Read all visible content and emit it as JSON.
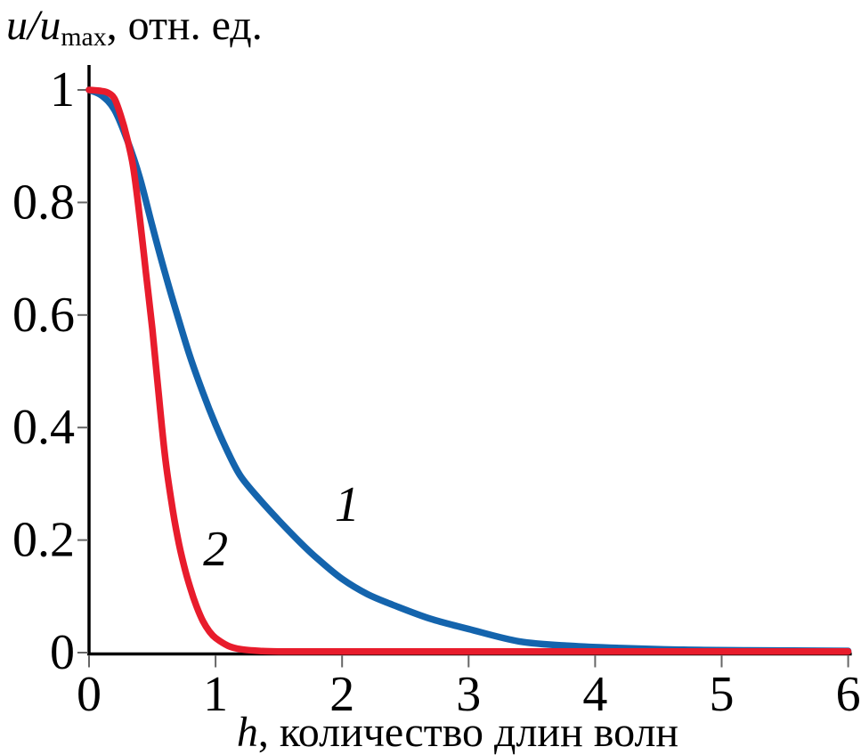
{
  "titles": {
    "y_italic": "u/u",
    "y_sub": "max",
    "y_rest": ", отн. ед.",
    "x_italic": "h",
    "x_rest": ", количество длин волн"
  },
  "chart_data": {
    "type": "line",
    "title": "",
    "ylabel": "u/u_max, отн. ед.",
    "xlabel": "h, количество длин волн",
    "xlim": [
      0,
      6
    ],
    "ylim": [
      0,
      1
    ],
    "x_ticks": [
      0,
      1,
      2,
      3,
      4,
      5,
      6
    ],
    "x_tick_labels": [
      "0",
      "1",
      "2",
      "3",
      "4",
      "5",
      "6"
    ],
    "y_ticks": [
      0,
      0.2,
      0.4,
      0.6,
      0.8,
      1
    ],
    "y_tick_labels": [
      "0",
      "0.2",
      "0.4",
      "0.6",
      "0.8",
      "1"
    ],
    "grid": false,
    "legend_position": "inline-curve-labels",
    "axis_color": "#000000",
    "series": [
      {
        "name": "1",
        "color": "#1464ad",
        "label_position": {
          "x": 2.04,
          "y": 0.263
        },
        "points": [
          [
            0,
            1.0
          ],
          [
            0.1,
            0.99
          ],
          [
            0.2,
            0.965
          ],
          [
            0.3,
            0.912
          ],
          [
            0.4,
            0.845
          ],
          [
            0.5,
            0.758
          ],
          [
            0.6,
            0.675
          ],
          [
            0.7,
            0.598
          ],
          [
            0.8,
            0.525
          ],
          [
            0.9,
            0.462
          ],
          [
            1.0,
            0.405
          ],
          [
            1.1,
            0.355
          ],
          [
            1.2,
            0.313
          ],
          [
            1.35,
            0.272
          ],
          [
            1.5,
            0.235
          ],
          [
            1.65,
            0.2
          ],
          [
            1.8,
            0.168
          ],
          [
            2.0,
            0.131
          ],
          [
            2.2,
            0.104
          ],
          [
            2.4,
            0.085
          ],
          [
            2.7,
            0.06
          ],
          [
            3.0,
            0.042
          ],
          [
            3.4,
            0.02
          ],
          [
            3.8,
            0.012
          ],
          [
            4.2,
            0.008
          ],
          [
            4.7,
            0.005
          ],
          [
            5.2,
            0.004
          ],
          [
            6.0,
            0.003
          ]
        ]
      },
      {
        "name": "2",
        "color": "#e81c2c",
        "label_position": {
          "x": 1.0,
          "y": 0.184
        },
        "points": [
          [
            0,
            1.0
          ],
          [
            0.1,
            0.998
          ],
          [
            0.15,
            0.995
          ],
          [
            0.2,
            0.985
          ],
          [
            0.25,
            0.955
          ],
          [
            0.3,
            0.915
          ],
          [
            0.35,
            0.862
          ],
          [
            0.4,
            0.775
          ],
          [
            0.45,
            0.675
          ],
          [
            0.5,
            0.575
          ],
          [
            0.55,
            0.46
          ],
          [
            0.6,
            0.35
          ],
          [
            0.65,
            0.27
          ],
          [
            0.7,
            0.205
          ],
          [
            0.75,
            0.155
          ],
          [
            0.8,
            0.115
          ],
          [
            0.85,
            0.082
          ],
          [
            0.9,
            0.056
          ],
          [
            0.95,
            0.038
          ],
          [
            1.0,
            0.026
          ],
          [
            1.1,
            0.012
          ],
          [
            1.2,
            0.006
          ],
          [
            1.35,
            0.003
          ],
          [
            1.5,
            0.002
          ],
          [
            2.0,
            0.002
          ],
          [
            3.0,
            0.002
          ],
          [
            4.5,
            0.002
          ],
          [
            6.0,
            0.002
          ]
        ]
      }
    ]
  }
}
